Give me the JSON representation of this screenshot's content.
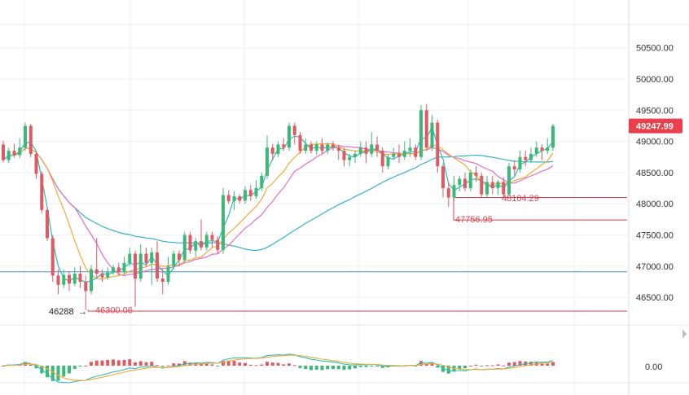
{
  "chart_data": {
    "type": "candlestick",
    "price_axis": {
      "ticks": [
        "50500.00",
        "50000.00",
        "49500.00",
        "49000.00",
        "48500.00",
        "48000.00",
        "47500.00",
        "47000.00",
        "46500.00"
      ],
      "range": [
        46100,
        50900
      ]
    },
    "current_price": {
      "label": "49247.99",
      "value": 49247.99,
      "color": "#e8404c"
    },
    "annotations": {
      "low_label": "46300.06",
      "low_value": 46300.06,
      "marker_label": "46288",
      "marker_arrow": "→",
      "mid_low_label": "47756.95",
      "mid_low_value": 47756.95,
      "recent_label": "48104.29",
      "recent_value": 48104.29
    },
    "horizontal_lines": [
      {
        "value": 46910,
        "color": "#3c8fd6"
      },
      {
        "value": 48100,
        "color": "#d6404c"
      },
      {
        "value": 47740,
        "color": "#d6404c"
      },
      {
        "value": 46280,
        "color": "#d6404c"
      }
    ],
    "candles": [
      [
        48950,
        48700,
        49010,
        48660
      ],
      [
        48700,
        48850,
        48900,
        48650
      ],
      [
        48850,
        48780,
        48960,
        48740
      ],
      [
        48780,
        48900,
        49050,
        48730
      ],
      [
        48900,
        49250,
        49300,
        48850
      ],
      [
        49250,
        48800,
        49280,
        48750
      ],
      [
        48800,
        48480,
        48850,
        48400
      ],
      [
        48480,
        47900,
        48520,
        47850
      ],
      [
        47900,
        47450,
        47950,
        47400
      ],
      [
        47450,
        46850,
        47500,
        46750
      ],
      [
        46850,
        46700,
        46950,
        46550
      ],
      [
        46700,
        46860,
        46950,
        46650
      ],
      [
        46860,
        46720,
        46920,
        46600
      ],
      [
        46720,
        46880,
        46980,
        46680
      ],
      [
        46880,
        46750,
        47000,
        46650
      ],
      [
        46750,
        46600,
        46850,
        46300
      ],
      [
        46600,
        46950,
        47020,
        46550
      ],
      [
        46950,
        46880,
        47450,
        46800
      ],
      [
        46880,
        46820,
        46950,
        46750
      ],
      [
        46820,
        46900,
        46980,
        46780
      ],
      [
        46900,
        46980,
        47020,
        46860
      ],
      [
        46980,
        46900,
        47050,
        46850
      ],
      [
        46900,
        47050,
        47150,
        46870
      ],
      [
        47050,
        47200,
        47300,
        47000
      ],
      [
        47200,
        46800,
        47250,
        46350
      ],
      [
        46800,
        47200,
        47350,
        46750
      ],
      [
        47200,
        47050,
        47300,
        46980
      ],
      [
        47050,
        47220,
        47300,
        46700
      ],
      [
        47220,
        46800,
        47400,
        46750
      ],
      [
        46800,
        46750,
        46950,
        46550
      ],
      [
        46750,
        47000,
        47150,
        46700
      ],
      [
        47000,
        47200,
        47250,
        46950
      ],
      [
        47200,
        47100,
        47250,
        47000
      ],
      [
        47100,
        47500,
        47550,
        47050
      ],
      [
        47500,
        47250,
        47550,
        47200
      ],
      [
        47250,
        47400,
        47450,
        47150
      ],
      [
        47400,
        47300,
        47750,
        47250
      ],
      [
        47300,
        47500,
        47550,
        47250
      ],
      [
        47500,
        47420,
        47550,
        47300
      ],
      [
        47420,
        47260,
        47480,
        47200
      ],
      [
        47260,
        48140,
        48250,
        47200
      ],
      [
        48140,
        48040,
        48220,
        48000
      ],
      [
        48040,
        48120,
        48200,
        47900
      ],
      [
        48120,
        48050,
        48150,
        48000
      ],
      [
        48050,
        48220,
        48280,
        48000
      ],
      [
        48220,
        48120,
        48300,
        48050
      ],
      [
        48120,
        48250,
        48380,
        48080
      ],
      [
        48250,
        48450,
        48500,
        48200
      ],
      [
        48450,
        48900,
        49100,
        48400
      ],
      [
        48900,
        48800,
        48960,
        48700
      ],
      [
        48800,
        48950,
        49000,
        48750
      ],
      [
        48950,
        48900,
        49050,
        48850
      ],
      [
        48900,
        49250,
        49300,
        48850
      ],
      [
        49250,
        49100,
        49300,
        48950
      ],
      [
        49100,
        48850,
        49150,
        48800
      ],
      [
        48850,
        48950,
        49050,
        48800
      ],
      [
        48950,
        48850,
        49000,
        48800
      ],
      [
        48850,
        48950,
        49000,
        48780
      ],
      [
        48950,
        48850,
        49050,
        48800
      ],
      [
        48850,
        48950,
        48980,
        48800
      ],
      [
        48950,
        48900,
        49000,
        48850
      ],
      [
        48900,
        48850,
        48950,
        48700
      ],
      [
        48850,
        48700,
        48900,
        48600
      ],
      [
        48700,
        48750,
        48800,
        48600
      ],
      [
        48750,
        48800,
        48850,
        48650
      ],
      [
        48800,
        48900,
        49000,
        48750
      ],
      [
        48900,
        48800,
        49000,
        48650
      ],
      [
        48800,
        48950,
        49150,
        48750
      ],
      [
        48950,
        48850,
        49080,
        48750
      ],
      [
        48850,
        48600,
        48900,
        48500
      ],
      [
        48600,
        48750,
        48800,
        48550
      ],
      [
        48750,
        48800,
        48900,
        48700
      ],
      [
        48800,
        48750,
        48950,
        48650
      ],
      [
        48750,
        48850,
        49000,
        48700
      ],
      [
        48850,
        48900,
        49050,
        48750
      ],
      [
        48900,
        48750,
        48950,
        48700
      ],
      [
        48750,
        49500,
        49580,
        48700
      ],
      [
        49500,
        48900,
        49600,
        48850
      ],
      [
        48900,
        49300,
        49420,
        48850
      ],
      [
        49300,
        48600,
        49350,
        48500
      ],
      [
        48600,
        48250,
        48650,
        48100
      ],
      [
        48250,
        48100,
        48350,
        47950
      ],
      [
        48100,
        48300,
        48450,
        48050
      ],
      [
        48300,
        48400,
        48450,
        48200
      ],
      [
        48400,
        48250,
        48500,
        48200
      ],
      [
        48250,
        48500,
        48550,
        48200
      ],
      [
        48500,
        48450,
        48600,
        48350
      ],
      [
        48450,
        48150,
        48500,
        48100
      ],
      [
        48150,
        48350,
        48450,
        48100
      ],
      [
        48350,
        48250,
        48450,
        48150
      ],
      [
        48250,
        48350,
        48380,
        48150
      ],
      [
        48350,
        48150,
        48420,
        48104
      ],
      [
        48150,
        48600,
        48650,
        48120
      ],
      [
        48600,
        48550,
        48700,
        48450
      ],
      [
        48550,
        48750,
        48850,
        48500
      ],
      [
        48750,
        48700,
        48850,
        48600
      ],
      [
        48700,
        48800,
        48900,
        48650
      ],
      [
        48800,
        48900,
        49000,
        48750
      ],
      [
        48900,
        48850,
        48950,
        48700
      ],
      [
        48850,
        48900,
        49050,
        48800
      ],
      [
        48900,
        49248,
        49280,
        48850
      ]
    ],
    "bottom_panel": {
      "ticks": [
        "0.00"
      ]
    }
  },
  "style": {
    "up_color": "#3cb878",
    "down_color": "#e05a64",
    "ma_fast_color": "#2bbdb2",
    "ma_mid_color": "#f2a93b",
    "ma_slow_color": "#e36fc6",
    "ma_long_color": "#36b2cc",
    "grid_color": "#eef0f3"
  }
}
